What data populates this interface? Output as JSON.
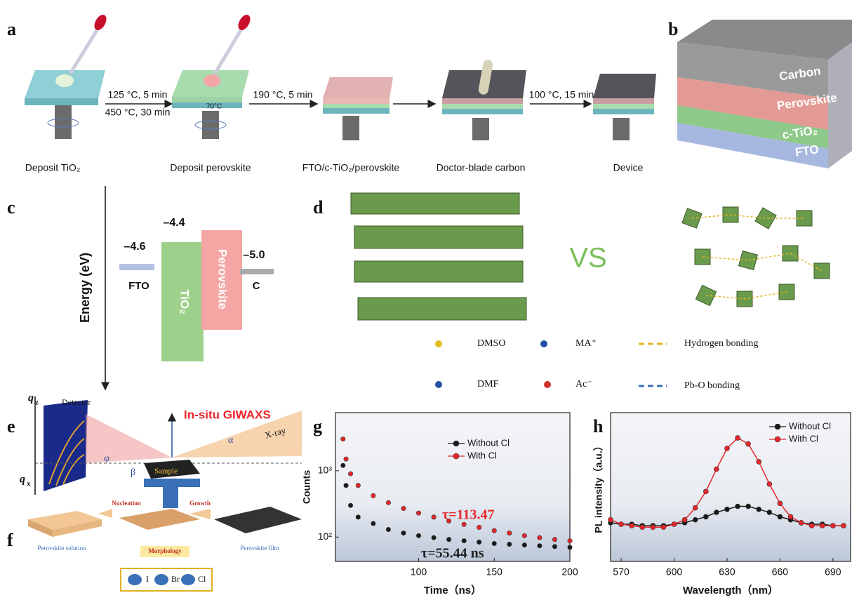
{
  "panel_labels": [
    "a",
    "b",
    "c",
    "d",
    "e",
    "f",
    "g",
    "h"
  ],
  "a": {
    "conditions": [
      "125 °C, 5 min",
      "450 °C, 30 min",
      "70°C",
      "190 °C, 5 min",
      "100 °C, 15 min"
    ],
    "captions": [
      "Deposit TiO₂",
      "Deposit perovskite",
      "FTO/c-TiO₂/perovskite",
      "Doctor-blade carbon",
      "Device"
    ]
  },
  "b": {
    "layers": [
      "Carbon",
      "Perovskite",
      "c-TiO₂",
      "FTO"
    ]
  },
  "c": {
    "axis_label": "Energy (eV)",
    "levels": [
      {
        "value": "–4.6",
        "name": "FTO"
      },
      {
        "value": "–4.4",
        "name": "TiO₂"
      },
      {
        "name": "Perovskite"
      },
      {
        "value": "–5.0",
        "name": "C"
      }
    ]
  },
  "d": {
    "vs": "VS",
    "legend": [
      "DMSO",
      "MA⁺",
      "Hydrogen bonding",
      "DMF",
      "Ac⁻",
      "Pb-O bonding"
    ]
  },
  "e": {
    "labels": [
      "q",
      "z",
      "Detector",
      "In-situ GIWAXS",
      "X-ray",
      "β",
      "φ",
      "α",
      "Sample",
      "q",
      "x"
    ]
  },
  "f": {
    "labels": [
      "Nucleation",
      "Growth",
      "Perovskite solution",
      "Perovskite film",
      "Morphology",
      "I",
      "Br",
      "Cl"
    ]
  },
  "chart_data": [
    {
      "type": "scatter",
      "x_label": "Time（ns）",
      "y_label": "Counts",
      "log_y": true,
      "xlim": [
        45,
        200
      ],
      "ylim": [
        43,
        7500
      ],
      "xticks": [
        100,
        150,
        200
      ],
      "yticks": [
        {
          "value": 100,
          "label": "10²"
        },
        {
          "value": 1000,
          "label": "10³"
        }
      ],
      "legend": "upper center",
      "series": [
        {
          "name": "Without Cl",
          "color": "#1a1a1a",
          "x": [
            50,
            52,
            55,
            60,
            70,
            80,
            90,
            100,
            110,
            120,
            130,
            140,
            150,
            160,
            170,
            180,
            190,
            200
          ],
          "values": [
            1200,
            600,
            300,
            200,
            160,
            130,
            115,
            105,
            98,
            92,
            88,
            84,
            80,
            78,
            76,
            74,
            72,
            70
          ]
        },
        {
          "name": "With Cl",
          "color": "#e8262a",
          "x": [
            50,
            52,
            55,
            60,
            70,
            80,
            90,
            100,
            110,
            120,
            130,
            140,
            150,
            160,
            170,
            180,
            190,
            200
          ],
          "values": [
            3000,
            1500,
            900,
            600,
            420,
            330,
            270,
            230,
            200,
            175,
            155,
            140,
            125,
            115,
            105,
            98,
            92,
            88
          ]
        }
      ],
      "annotations": [
        {
          "text": "τ=113.47",
          "color": "#e8262a"
        },
        {
          "text": "τ=55.44 ns",
          "color": "#222222"
        }
      ]
    },
    {
      "type": "line",
      "x_label": "Wavelength（nm）",
      "y_label": "PL intensity（a.u.）",
      "xlim": [
        564,
        700
      ],
      "ylim": [
        0,
        100
      ],
      "xticks": [
        570,
        600,
        630,
        660,
        690
      ],
      "legend": "upper right",
      "x": [
        564,
        570,
        576,
        582,
        588,
        594,
        600,
        606,
        612,
        618,
        624,
        630,
        636,
        642,
        648,
        654,
        660,
        666,
        672,
        678,
        684,
        690,
        696
      ],
      "series": [
        {
          "name": "Without Cl",
          "color": "#1a1a1a",
          "values": [
            26,
            25,
            25,
            24,
            24,
            24,
            25,
            26,
            28,
            30,
            33,
            35,
            37,
            37,
            35,
            33,
            30,
            28,
            26,
            25,
            25,
            24,
            24
          ]
        },
        {
          "name": "With Cl",
          "color": "#e8262a",
          "values": [
            28,
            25,
            24,
            23,
            23,
            23,
            25,
            28,
            36,
            47,
            62,
            76,
            83,
            79,
            67,
            52,
            39,
            30,
            26,
            24,
            24,
            24,
            24
          ]
        }
      ]
    }
  ]
}
